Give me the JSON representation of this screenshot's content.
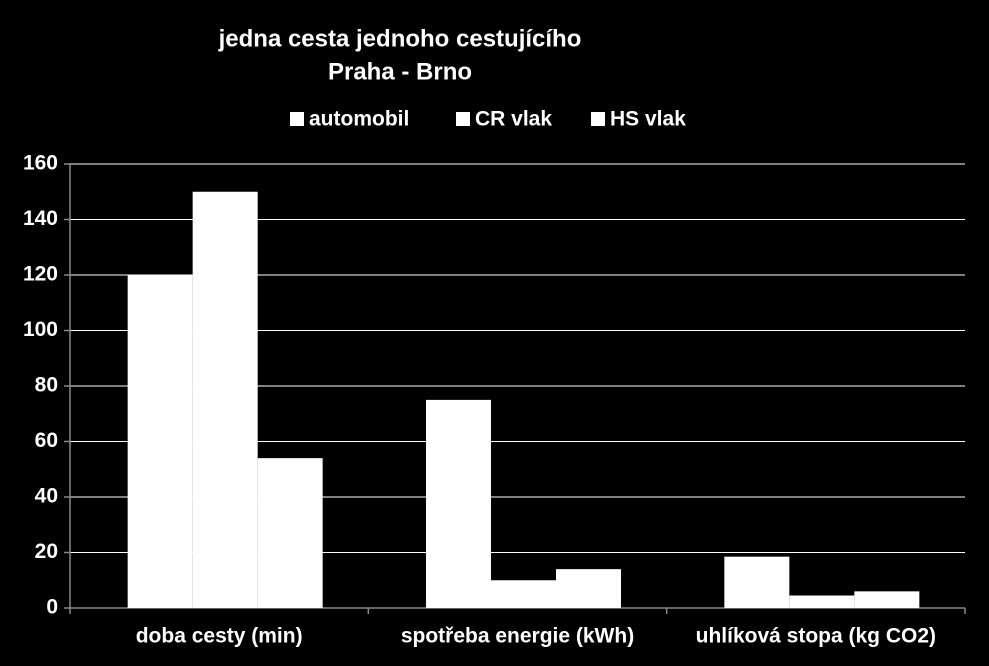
{
  "chart_data": {
    "type": "bar",
    "title": "jedna cesta jednoho cestujícího",
    "subtitle": "Praha - Brno",
    "categories": [
      "doba cesty (min)",
      "spotřeba energie (kWh)",
      "uhlíková stopa (kg CO2)"
    ],
    "series": [
      {
        "name": "automobil",
        "color": "#ffffff",
        "values": [
          120,
          75,
          18.5
        ]
      },
      {
        "name": "CR vlak",
        "color": "#ffffff",
        "values": [
          150,
          10,
          4.5
        ]
      },
      {
        "name": "HS vlak",
        "color": "#ffffff",
        "values": [
          54,
          14,
          6
        ]
      }
    ],
    "ylim": [
      0,
      160
    ],
    "yticks": [
      0,
      20,
      40,
      60,
      80,
      100,
      120,
      140,
      160
    ],
    "grid": true,
    "legend": "top"
  }
}
